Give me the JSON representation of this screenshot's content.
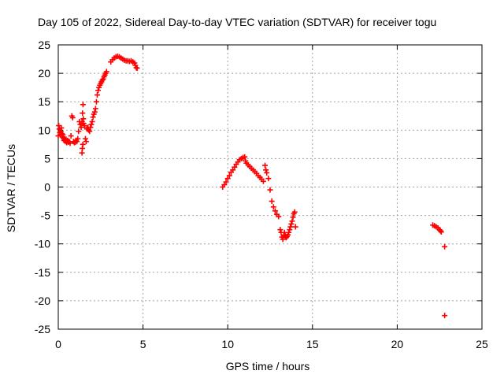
{
  "chart_data": {
    "type": "scatter",
    "title": "Day 105 of 2022, Sidereal Day-to-day VTEC variation (SDTVAR) for receiver togu",
    "xlabel": "GPS time / hours",
    "ylabel": "SDTVAR / TECUs",
    "xlim": [
      0,
      25
    ],
    "ylim": [
      -25,
      25
    ],
    "xticks": [
      0,
      5,
      10,
      15,
      20,
      25
    ],
    "yticks": [
      -25,
      -20,
      -15,
      -10,
      -5,
      0,
      5,
      10,
      15,
      20,
      25
    ],
    "xtick_labels": [
      "0",
      "5",
      "10",
      "15",
      "20",
      "25"
    ],
    "ytick_labels": [
      "-25",
      "-20",
      "-15",
      "-10",
      "-5",
      "0",
      "5",
      "10",
      "15",
      "20",
      "25"
    ],
    "grid": true,
    "marker": "+",
    "marker_color": "#ff0000",
    "series": [
      {
        "name": "SDTVAR",
        "points": [
          [
            0.0,
            9.0
          ],
          [
            0.03,
            10.8
          ],
          [
            0.06,
            10.2
          ],
          [
            0.09,
            9.6
          ],
          [
            0.12,
            9.2
          ],
          [
            0.15,
            9.8
          ],
          [
            0.18,
            10.4
          ],
          [
            0.21,
            9.4
          ],
          [
            0.24,
            8.8
          ],
          [
            0.27,
            9.2
          ],
          [
            0.3,
            8.6
          ],
          [
            0.34,
            8.2
          ],
          [
            0.38,
            8.5
          ],
          [
            0.42,
            8.0
          ],
          [
            0.46,
            8.4
          ],
          [
            0.5,
            7.8
          ],
          [
            0.55,
            8.2
          ],
          [
            0.6,
            7.9
          ],
          [
            0.65,
            8.0
          ],
          [
            0.7,
            7.7
          ],
          [
            0.75,
            9.0
          ],
          [
            0.8,
            12.5
          ],
          [
            0.85,
            12.2
          ],
          [
            0.9,
            8.0
          ],
          [
            0.95,
            7.8
          ],
          [
            1.0,
            7.9
          ],
          [
            1.05,
            8.2
          ],
          [
            1.1,
            8.0
          ],
          [
            1.15,
            8.5
          ],
          [
            1.2,
            9.8
          ],
          [
            1.25,
            11.5
          ],
          [
            1.3,
            11.0
          ],
          [
            1.35,
            10.5
          ],
          [
            1.4,
            11.5
          ],
          [
            1.43,
            13.0
          ],
          [
            1.46,
            14.5
          ],
          [
            1.48,
            12.0
          ],
          [
            1.4,
            6.0
          ],
          [
            1.42,
            6.8
          ],
          [
            1.45,
            7.5
          ],
          [
            1.5,
            11.2
          ],
          [
            1.55,
            10.8
          ],
          [
            1.6,
            8.5
          ],
          [
            1.65,
            8.0
          ],
          [
            1.7,
            10.2
          ],
          [
            1.75,
            10.5
          ],
          [
            1.8,
            10.0
          ],
          [
            1.85,
            9.8
          ],
          [
            1.9,
            10.5
          ],
          [
            1.95,
            11.0
          ],
          [
            2.0,
            11.5
          ],
          [
            2.05,
            12.3
          ],
          [
            2.1,
            12.8
          ],
          [
            2.15,
            13.2
          ],
          [
            2.2,
            13.8
          ],
          [
            2.25,
            15.0
          ],
          [
            2.3,
            16.2
          ],
          [
            2.35,
            17.0
          ],
          [
            2.4,
            17.5
          ],
          [
            2.45,
            17.9
          ],
          [
            2.5,
            18.2
          ],
          [
            2.55,
            18.5
          ],
          [
            2.6,
            18.8
          ],
          [
            2.65,
            19.0
          ],
          [
            2.7,
            19.4
          ],
          [
            2.75,
            19.7
          ],
          [
            2.8,
            20.0
          ],
          [
            2.85,
            20.3
          ],
          [
            3.1,
            22.0
          ],
          [
            3.2,
            22.4
          ],
          [
            3.3,
            22.7
          ],
          [
            3.4,
            22.9
          ],
          [
            3.5,
            23.0
          ],
          [
            3.6,
            22.9
          ],
          [
            3.7,
            22.7
          ],
          [
            3.8,
            22.5
          ],
          [
            3.9,
            22.3
          ],
          [
            4.0,
            22.2
          ],
          [
            4.1,
            22.2
          ],
          [
            4.2,
            22.1
          ],
          [
            4.3,
            22.2
          ],
          [
            4.4,
            22.0
          ],
          [
            4.5,
            21.8
          ],
          [
            4.55,
            21.4
          ],
          [
            4.6,
            21.0
          ],
          [
            4.65,
            20.9
          ],
          [
            9.7,
            0.0
          ],
          [
            9.8,
            0.4
          ],
          [
            9.9,
            0.9
          ],
          [
            10.0,
            1.5
          ],
          [
            10.1,
            2.0
          ],
          [
            10.2,
            2.6
          ],
          [
            10.3,
            3.0
          ],
          [
            10.4,
            3.5
          ],
          [
            10.5,
            4.0
          ],
          [
            10.6,
            4.4
          ],
          [
            10.7,
            4.8
          ],
          [
            10.8,
            5.0
          ],
          [
            10.9,
            5.2
          ],
          [
            11.0,
            5.3
          ],
          [
            11.05,
            4.6
          ],
          [
            11.1,
            4.2
          ],
          [
            11.2,
            3.9
          ],
          [
            11.3,
            3.6
          ],
          [
            11.4,
            3.3
          ],
          [
            11.5,
            3.0
          ],
          [
            11.6,
            2.7
          ],
          [
            11.7,
            2.4
          ],
          [
            11.8,
            2.0
          ],
          [
            11.9,
            1.7
          ],
          [
            12.0,
            1.4
          ],
          [
            12.1,
            1.0
          ],
          [
            12.2,
            3.8
          ],
          [
            12.25,
            3.0
          ],
          [
            12.3,
            2.5
          ],
          [
            12.4,
            1.5
          ],
          [
            12.5,
            -0.5
          ],
          [
            12.6,
            -2.5
          ],
          [
            12.7,
            -3.5
          ],
          [
            12.8,
            -4.2
          ],
          [
            12.9,
            -4.8
          ],
          [
            13.0,
            -5.2
          ],
          [
            13.1,
            -7.5
          ],
          [
            13.15,
            -8.0
          ],
          [
            13.2,
            -8.8
          ],
          [
            13.25,
            -9.2
          ],
          [
            13.3,
            -8.5
          ],
          [
            13.35,
            -8.0
          ],
          [
            13.4,
            -8.6
          ],
          [
            13.45,
            -8.9
          ],
          [
            13.5,
            -8.7
          ],
          [
            13.55,
            -8.4
          ],
          [
            13.6,
            -8.0
          ],
          [
            13.65,
            -7.5
          ],
          [
            13.7,
            -7.0
          ],
          [
            13.75,
            -6.5
          ],
          [
            13.8,
            -6.0
          ],
          [
            13.85,
            -5.3
          ],
          [
            13.9,
            -4.7
          ],
          [
            13.95,
            -4.4
          ],
          [
            14.0,
            -7.0
          ],
          [
            22.1,
            -6.7
          ],
          [
            22.2,
            -6.8
          ],
          [
            22.3,
            -7.0
          ],
          [
            22.4,
            -7.2
          ],
          [
            22.5,
            -7.5
          ],
          [
            22.55,
            -7.7
          ],
          [
            22.6,
            -7.9
          ],
          [
            22.8,
            -10.5
          ],
          [
            22.8,
            -22.6
          ]
        ]
      }
    ]
  }
}
